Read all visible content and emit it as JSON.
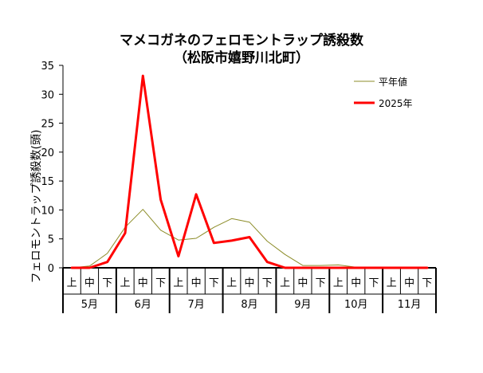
{
  "chart_data": {
    "type": "line",
    "title": "マメコガネのフェロモントラップ誘殺数",
    "subtitle": "（松阪市嬉野川北町）",
    "ylabel": "フェロモントラップ誘殺数(頭)",
    "ylim": [
      0,
      35
    ],
    "yticks": [
      0,
      5,
      10,
      15,
      20,
      25,
      30,
      35
    ],
    "grid": false,
    "legend_position": "top-right",
    "x_periods": [
      "上",
      "中",
      "下",
      "上",
      "中",
      "下",
      "上",
      "中",
      "下",
      "上",
      "中",
      "下",
      "上",
      "中",
      "下",
      "上",
      "中",
      "下",
      "上",
      "中",
      "下"
    ],
    "months": [
      "5月",
      "6月",
      "7月",
      "8月",
      "9月",
      "10月",
      "11月"
    ],
    "series": [
      {
        "name": "平年値",
        "color": "#8c8c28",
        "width": 1,
        "values": [
          0,
          0.3,
          2.5,
          7,
          10.1,
          6.5,
          4.8,
          5.1,
          7,
          8.5,
          7.9,
          4.6,
          2.3,
          0.4,
          0.4,
          0.5,
          0.1,
          0,
          0,
          0,
          0
        ]
      },
      {
        "name": "2025年",
        "color": "#ff0000",
        "width": 3,
        "values": [
          0,
          0,
          1,
          6,
          33.2,
          11.8,
          2,
          12.7,
          4.3,
          4.7,
          5.3,
          1,
          0,
          0,
          0,
          0,
          0,
          0,
          0,
          0,
          0
        ]
      }
    ]
  }
}
